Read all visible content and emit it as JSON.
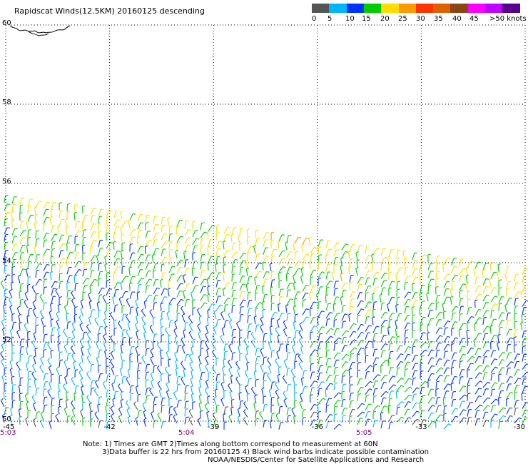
{
  "header": {
    "title": "Rapidscat Winds(12.5KM) 20160125 descending"
  },
  "colorbar": {
    "segments": [
      {
        "color": "#555555"
      },
      {
        "color": "#00b4ff"
      },
      {
        "color": "#0032ff"
      },
      {
        "color": "#00cc00"
      },
      {
        "color": "#ffdd00"
      },
      {
        "color": "#ff9900"
      },
      {
        "color": "#ff3300"
      },
      {
        "color": "#e06000"
      },
      {
        "color": "#8b4513"
      },
      {
        "color": "#ff00ff"
      },
      {
        "color": "#c000ff"
      },
      {
        "color": "#5a0090"
      }
    ],
    "labels": [
      "0",
      "5",
      "10",
      "15",
      "20",
      "25",
      "30",
      "35",
      "40",
      "45",
      ">50 knots"
    ]
  },
  "axes": {
    "lat_labels": [
      "60",
      "58",
      "56",
      "54",
      "52",
      "50"
    ],
    "lon_labels": [
      "-45",
      "-42",
      "-39",
      "-36",
      "-33",
      "-30"
    ],
    "time_labels": [
      "5:03",
      "5:04",
      "5:05"
    ],
    "time_color": "#800080"
  },
  "notes": {
    "line1": "Note: 1) Times are GMT 2)Times along bottom correspond to measurement at 60N",
    "line2": "3)Data buffer is 22 hrs from 20160125 4) Black wind barbs indicate possible contamination",
    "line3": "NOAA/NESDIS/Center for Satellite Applications and Research"
  },
  "chart_data": {
    "type": "wind-barb map",
    "lat_range": [
      50,
      60
    ],
    "lon_range": [
      -45,
      -30
    ],
    "wind_speed_bins_knots": [
      0,
      5,
      10,
      15,
      20,
      25,
      30,
      35,
      40,
      45,
      50
    ]
  }
}
